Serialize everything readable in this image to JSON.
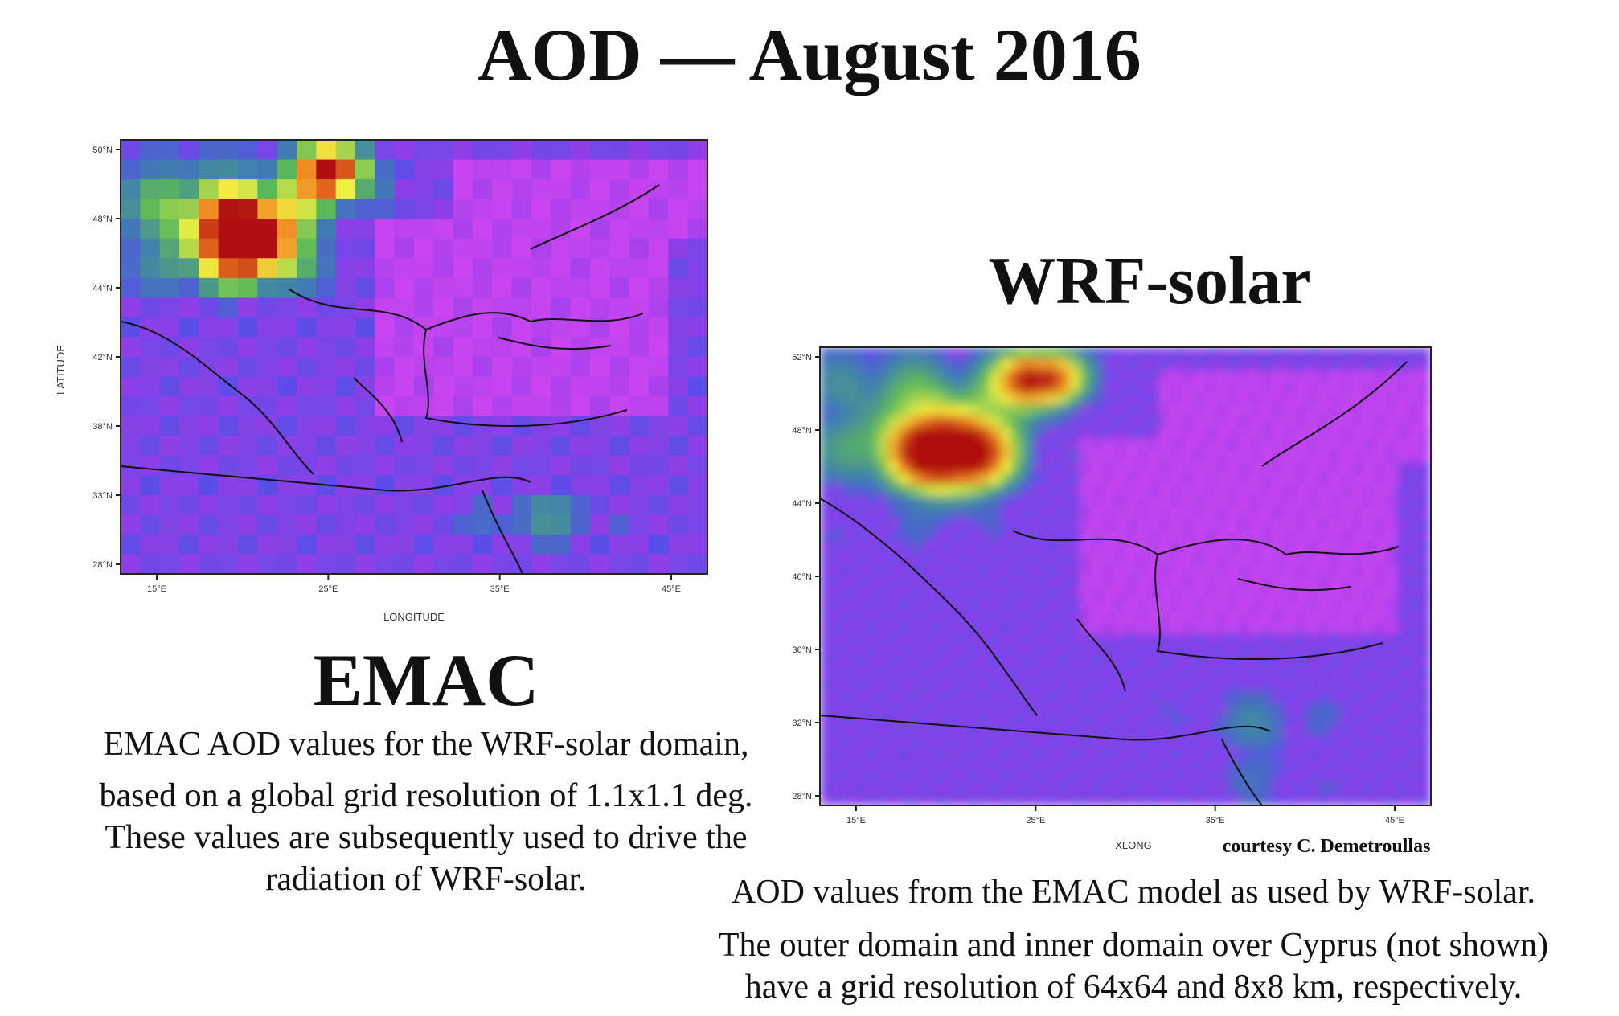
{
  "title": "AOD — August 2016",
  "emac": {
    "heading": "EMAC",
    "caption_lines": [
      "EMAC AOD values for the WRF-solar domain,",
      "based on a global grid resolution of 1.1x1.1 deg.",
      "These values are subsequently used to drive the",
      "radiation of WRF-solar."
    ],
    "map": {
      "y_axis_label": "LATITUDE",
      "x_axis_label": "LONGITUDE",
      "y_ticks": [
        "50°N",
        "48°N",
        "44°N",
        "42°N",
        "38°N",
        "33°N",
        "28°N"
      ],
      "x_ticks": [
        "15°E",
        "25°E",
        "35°E",
        "45°E"
      ]
    }
  },
  "wrf": {
    "heading": "WRF-solar",
    "courtesy": "courtesy C. Demetroullas",
    "caption_line1": "AOD values from the EMAC model as used by WRF-solar.",
    "caption_line2": [
      "The outer domain and inner domain over Cyprus (not shown)",
      "have a grid resolution of 64x64 and 8x8 km, respectively."
    ],
    "map": {
      "x_axis_label": "XLONG",
      "y_ticks": [
        "52°N",
        "48°N",
        "44°N",
        "40°N",
        "36°N",
        "32°N",
        "28°N"
      ],
      "x_ticks": [
        "15°E",
        "25°E",
        "35°E",
        "45°E"
      ]
    }
  },
  "colors": {
    "low": "#5a4ee8",
    "background_purple": "#8f3ee8",
    "magenta": "#c845f0",
    "blue_green": "#3f7fb0",
    "green": "#5ab85a",
    "yellow": "#f0f040",
    "orange": "#f08020",
    "red": "#b01010"
  }
}
